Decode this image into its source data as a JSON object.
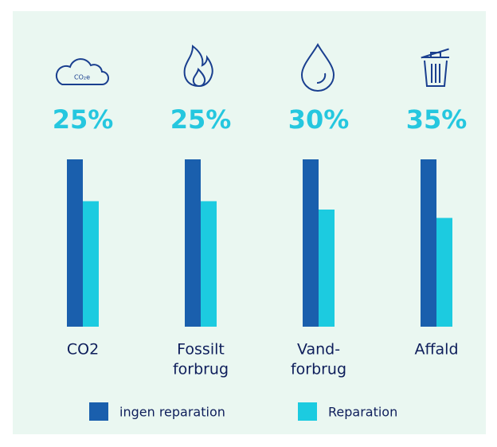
{
  "chart_data": {
    "type": "bar",
    "categories": [
      [
        "CO2"
      ],
      [
        "Fossilt",
        "forbrug"
      ],
      [
        "Vand-",
        "forbrug"
      ],
      [
        "Affald"
      ]
    ],
    "annotations": [
      "25%",
      "25%",
      "30%",
      "35%"
    ],
    "series": [
      {
        "name": "ingen reparation",
        "color": "#1a5fad",
        "values": [
          100,
          100,
          100,
          100
        ]
      },
      {
        "name": "Reparation",
        "color": "#1ccbe0",
        "values": [
          75,
          75,
          70,
          65
        ]
      }
    ],
    "ylim": [
      0,
      100
    ]
  }
}
